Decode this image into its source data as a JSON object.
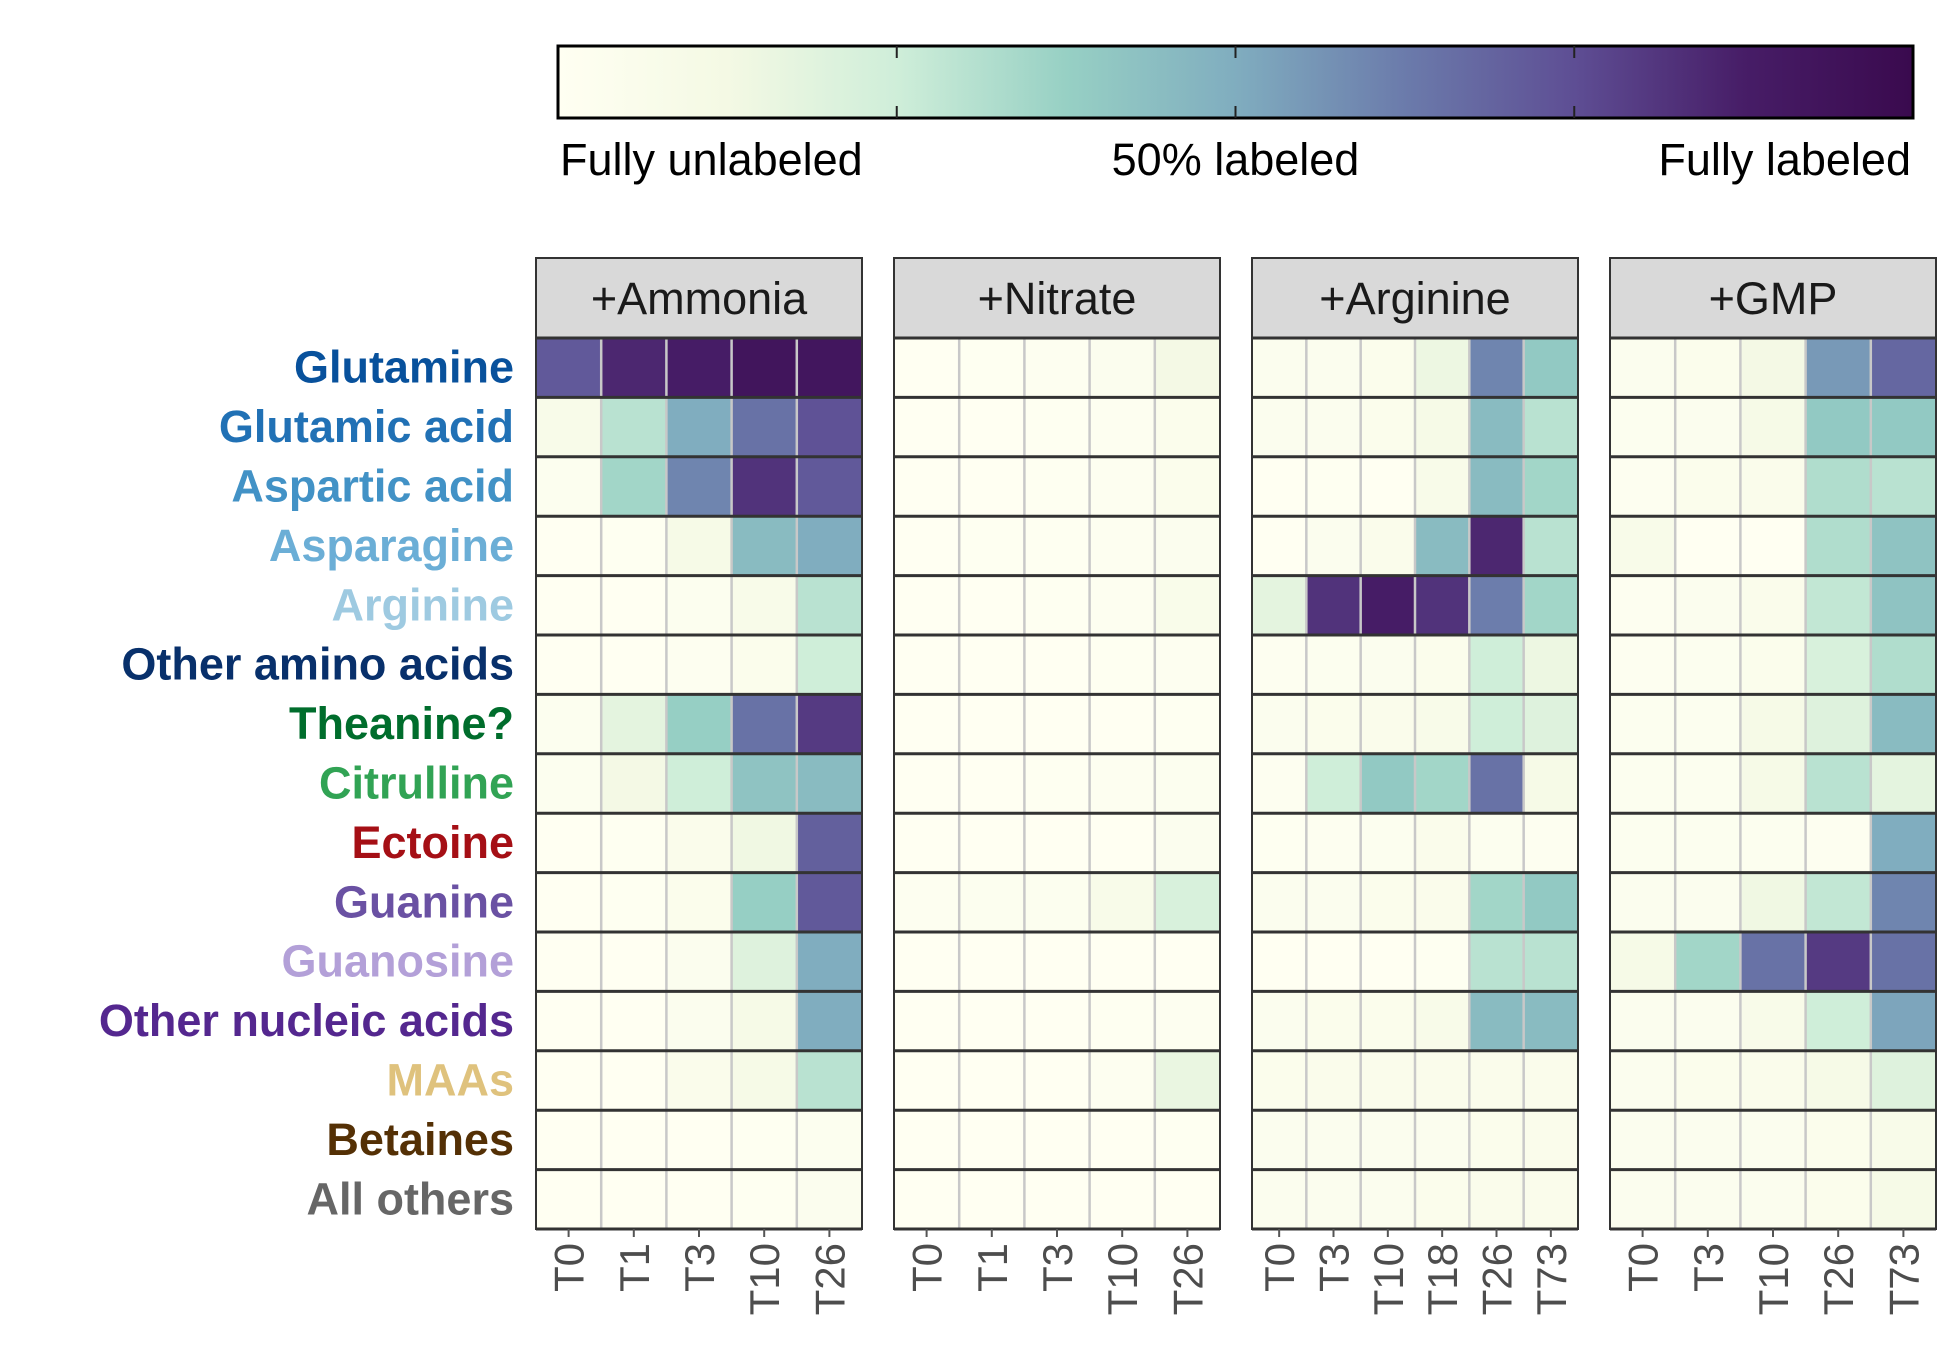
{
  "chart_data": {
    "type": "heatmap",
    "title": "",
    "xlabel": "",
    "ylabel": "",
    "value_range": [
      0,
      1
    ],
    "colorbar": {
      "labels": [
        "Fully unlabeled",
        "50% labeled",
        "Fully labeled"
      ],
      "placement": "top",
      "colors": [
        "#fffff2",
        "#f4f9e4",
        "#cfeed9",
        "#97d0c4",
        "#80adbf",
        "#6b7bab",
        "#5e4e94",
        "#471d67",
        "#3a0a4e"
      ]
    },
    "rows": [
      {
        "name": "Glutamine",
        "color": "#08519c"
      },
      {
        "name": "Glutamic acid",
        "color": "#2171b5"
      },
      {
        "name": "Aspartic acid",
        "color": "#4292c6"
      },
      {
        "name": "Asparagine",
        "color": "#6baed6"
      },
      {
        "name": "Arginine",
        "color": "#9ecae1"
      },
      {
        "name": "Other amino acids",
        "color": "#08306b"
      },
      {
        "name": "Theanine?",
        "color": "#006d2c"
      },
      {
        "name": "Citrulline",
        "color": "#31a354"
      },
      {
        "name": "Ectoine",
        "color": "#a50f15"
      },
      {
        "name": "Guanine",
        "color": "#6a51a3"
      },
      {
        "name": "Guanosine",
        "color": "#b3a0d8"
      },
      {
        "name": "Other nucleic acids",
        "color": "#54278f"
      },
      {
        "name": "MAAs",
        "color": "#dfc27d"
      },
      {
        "name": "Betaines",
        "color": "#543005"
      },
      {
        "name": "All others",
        "color": "#666666"
      }
    ],
    "panels": [
      {
        "name": "+Ammonia",
        "timepoints": [
          "T0",
          "T1",
          "T3",
          "T10",
          "T26"
        ],
        "values": [
          [
            0.72,
            0.85,
            0.88,
            0.93,
            0.92
          ],
          [
            0.08,
            0.3,
            0.5,
            0.65,
            0.74
          ],
          [
            0.03,
            0.35,
            0.6,
            0.82,
            0.72
          ],
          [
            0.0,
            0.01,
            0.1,
            0.45,
            0.5
          ],
          [
            0.0,
            0.0,
            0.03,
            0.08,
            0.3
          ],
          [
            0.0,
            0.0,
            0.02,
            0.05,
            0.25
          ],
          [
            0.03,
            0.18,
            0.38,
            0.65,
            0.8
          ],
          [
            0.03,
            0.12,
            0.25,
            0.42,
            0.45
          ],
          [
            0.0,
            0.01,
            0.06,
            0.14,
            0.7
          ],
          [
            0.0,
            0.01,
            0.05,
            0.38,
            0.72
          ],
          [
            0.0,
            0.0,
            0.04,
            0.2,
            0.5
          ],
          [
            0.0,
            0.0,
            0.04,
            0.1,
            0.5
          ],
          [
            0.0,
            0.0,
            0.06,
            0.1,
            0.3
          ],
          [
            0.0,
            0.0,
            0.0,
            0.01,
            0.03
          ],
          [
            0.0,
            0.0,
            0.0,
            0.01,
            0.04
          ]
        ]
      },
      {
        "name": "+Nitrate",
        "timepoints": [
          "T0",
          "T1",
          "T3",
          "T10",
          "T26"
        ],
        "values": [
          [
            0.0,
            0.01,
            0.02,
            0.04,
            0.12
          ],
          [
            0.0,
            0.0,
            0.01,
            0.02,
            0.05
          ],
          [
            0.0,
            0.0,
            0.01,
            0.02,
            0.05
          ],
          [
            0.0,
            0.01,
            0.01,
            0.02,
            0.04
          ],
          [
            0.0,
            0.0,
            0.01,
            0.02,
            0.07
          ],
          [
            0.0,
            0.0,
            0.0,
            0.01,
            0.02
          ],
          [
            0.0,
            0.0,
            0.0,
            0.0,
            0.01
          ],
          [
            0.0,
            0.0,
            0.01,
            0.02,
            0.03
          ],
          [
            0.0,
            0.0,
            0.0,
            0.0,
            0.04
          ],
          [
            0.02,
            0.03,
            0.03,
            0.08,
            0.22
          ],
          [
            0.0,
            0.0,
            0.0,
            0.0,
            0.0
          ],
          [
            0.0,
            0.0,
            0.0,
            0.01,
            0.02
          ],
          [
            0.0,
            0.0,
            0.0,
            0.02,
            0.16
          ],
          [
            0.0,
            0.0,
            0.0,
            0.0,
            0.01
          ],
          [
            0.0,
            0.0,
            0.0,
            0.0,
            0.0
          ]
        ]
      },
      {
        "name": "+Arginine",
        "timepoints": [
          "T0",
          "T3",
          "T10",
          "T18",
          "T26",
          "T73"
        ],
        "values": [
          [
            0.04,
            0.04,
            0.05,
            0.15,
            0.6,
            0.4
          ],
          [
            0.04,
            0.04,
            0.05,
            0.1,
            0.45,
            0.3
          ],
          [
            0.0,
            0.01,
            0.0,
            0.08,
            0.45,
            0.35
          ],
          [
            0.0,
            0.04,
            0.06,
            0.45,
            0.85,
            0.3
          ],
          [
            0.18,
            0.82,
            0.88,
            0.82,
            0.62,
            0.35
          ],
          [
            0.02,
            0.03,
            0.04,
            0.05,
            0.25,
            0.15
          ],
          [
            0.04,
            0.05,
            0.06,
            0.08,
            0.25,
            0.2
          ],
          [
            0.02,
            0.25,
            0.4,
            0.35,
            0.65,
            0.1
          ],
          [
            0.01,
            0.02,
            0.03,
            0.06,
            0.03,
            0.02
          ],
          [
            0.04,
            0.04,
            0.05,
            0.06,
            0.35,
            0.4
          ],
          [
            0.0,
            0.0,
            0.0,
            0.01,
            0.3,
            0.3
          ],
          [
            0.04,
            0.05,
            0.05,
            0.08,
            0.45,
            0.45
          ],
          [
            0.05,
            0.06,
            0.06,
            0.06,
            0.06,
            0.06
          ],
          [
            0.04,
            0.04,
            0.04,
            0.04,
            0.05,
            0.06
          ],
          [
            0.04,
            0.04,
            0.04,
            0.05,
            0.06,
            0.06
          ]
        ]
      },
      {
        "name": "+GMP",
        "timepoints": [
          "T0",
          "T3",
          "T10",
          "T26",
          "T73"
        ],
        "values": [
          [
            0.04,
            0.05,
            0.12,
            0.55,
            0.68
          ],
          [
            0.03,
            0.04,
            0.1,
            0.4,
            0.4
          ],
          [
            0.02,
            0.05,
            0.06,
            0.32,
            0.3
          ],
          [
            0.08,
            0.0,
            0.0,
            0.32,
            0.42
          ],
          [
            0.02,
            0.04,
            0.06,
            0.28,
            0.42
          ],
          [
            0.02,
            0.03,
            0.05,
            0.22,
            0.32
          ],
          [
            0.03,
            0.03,
            0.1,
            0.2,
            0.45
          ],
          [
            0.03,
            0.03,
            0.1,
            0.3,
            0.18
          ],
          [
            0.03,
            0.03,
            0.03,
            0.02,
            0.5
          ],
          [
            0.04,
            0.04,
            0.14,
            0.28,
            0.6
          ],
          [
            0.1,
            0.35,
            0.65,
            0.8,
            0.65
          ],
          [
            0.04,
            0.04,
            0.08,
            0.25,
            0.52
          ],
          [
            0.04,
            0.05,
            0.06,
            0.1,
            0.2
          ],
          [
            0.04,
            0.04,
            0.04,
            0.05,
            0.08
          ],
          [
            0.04,
            0.04,
            0.04,
            0.05,
            0.1
          ]
        ]
      }
    ]
  }
}
